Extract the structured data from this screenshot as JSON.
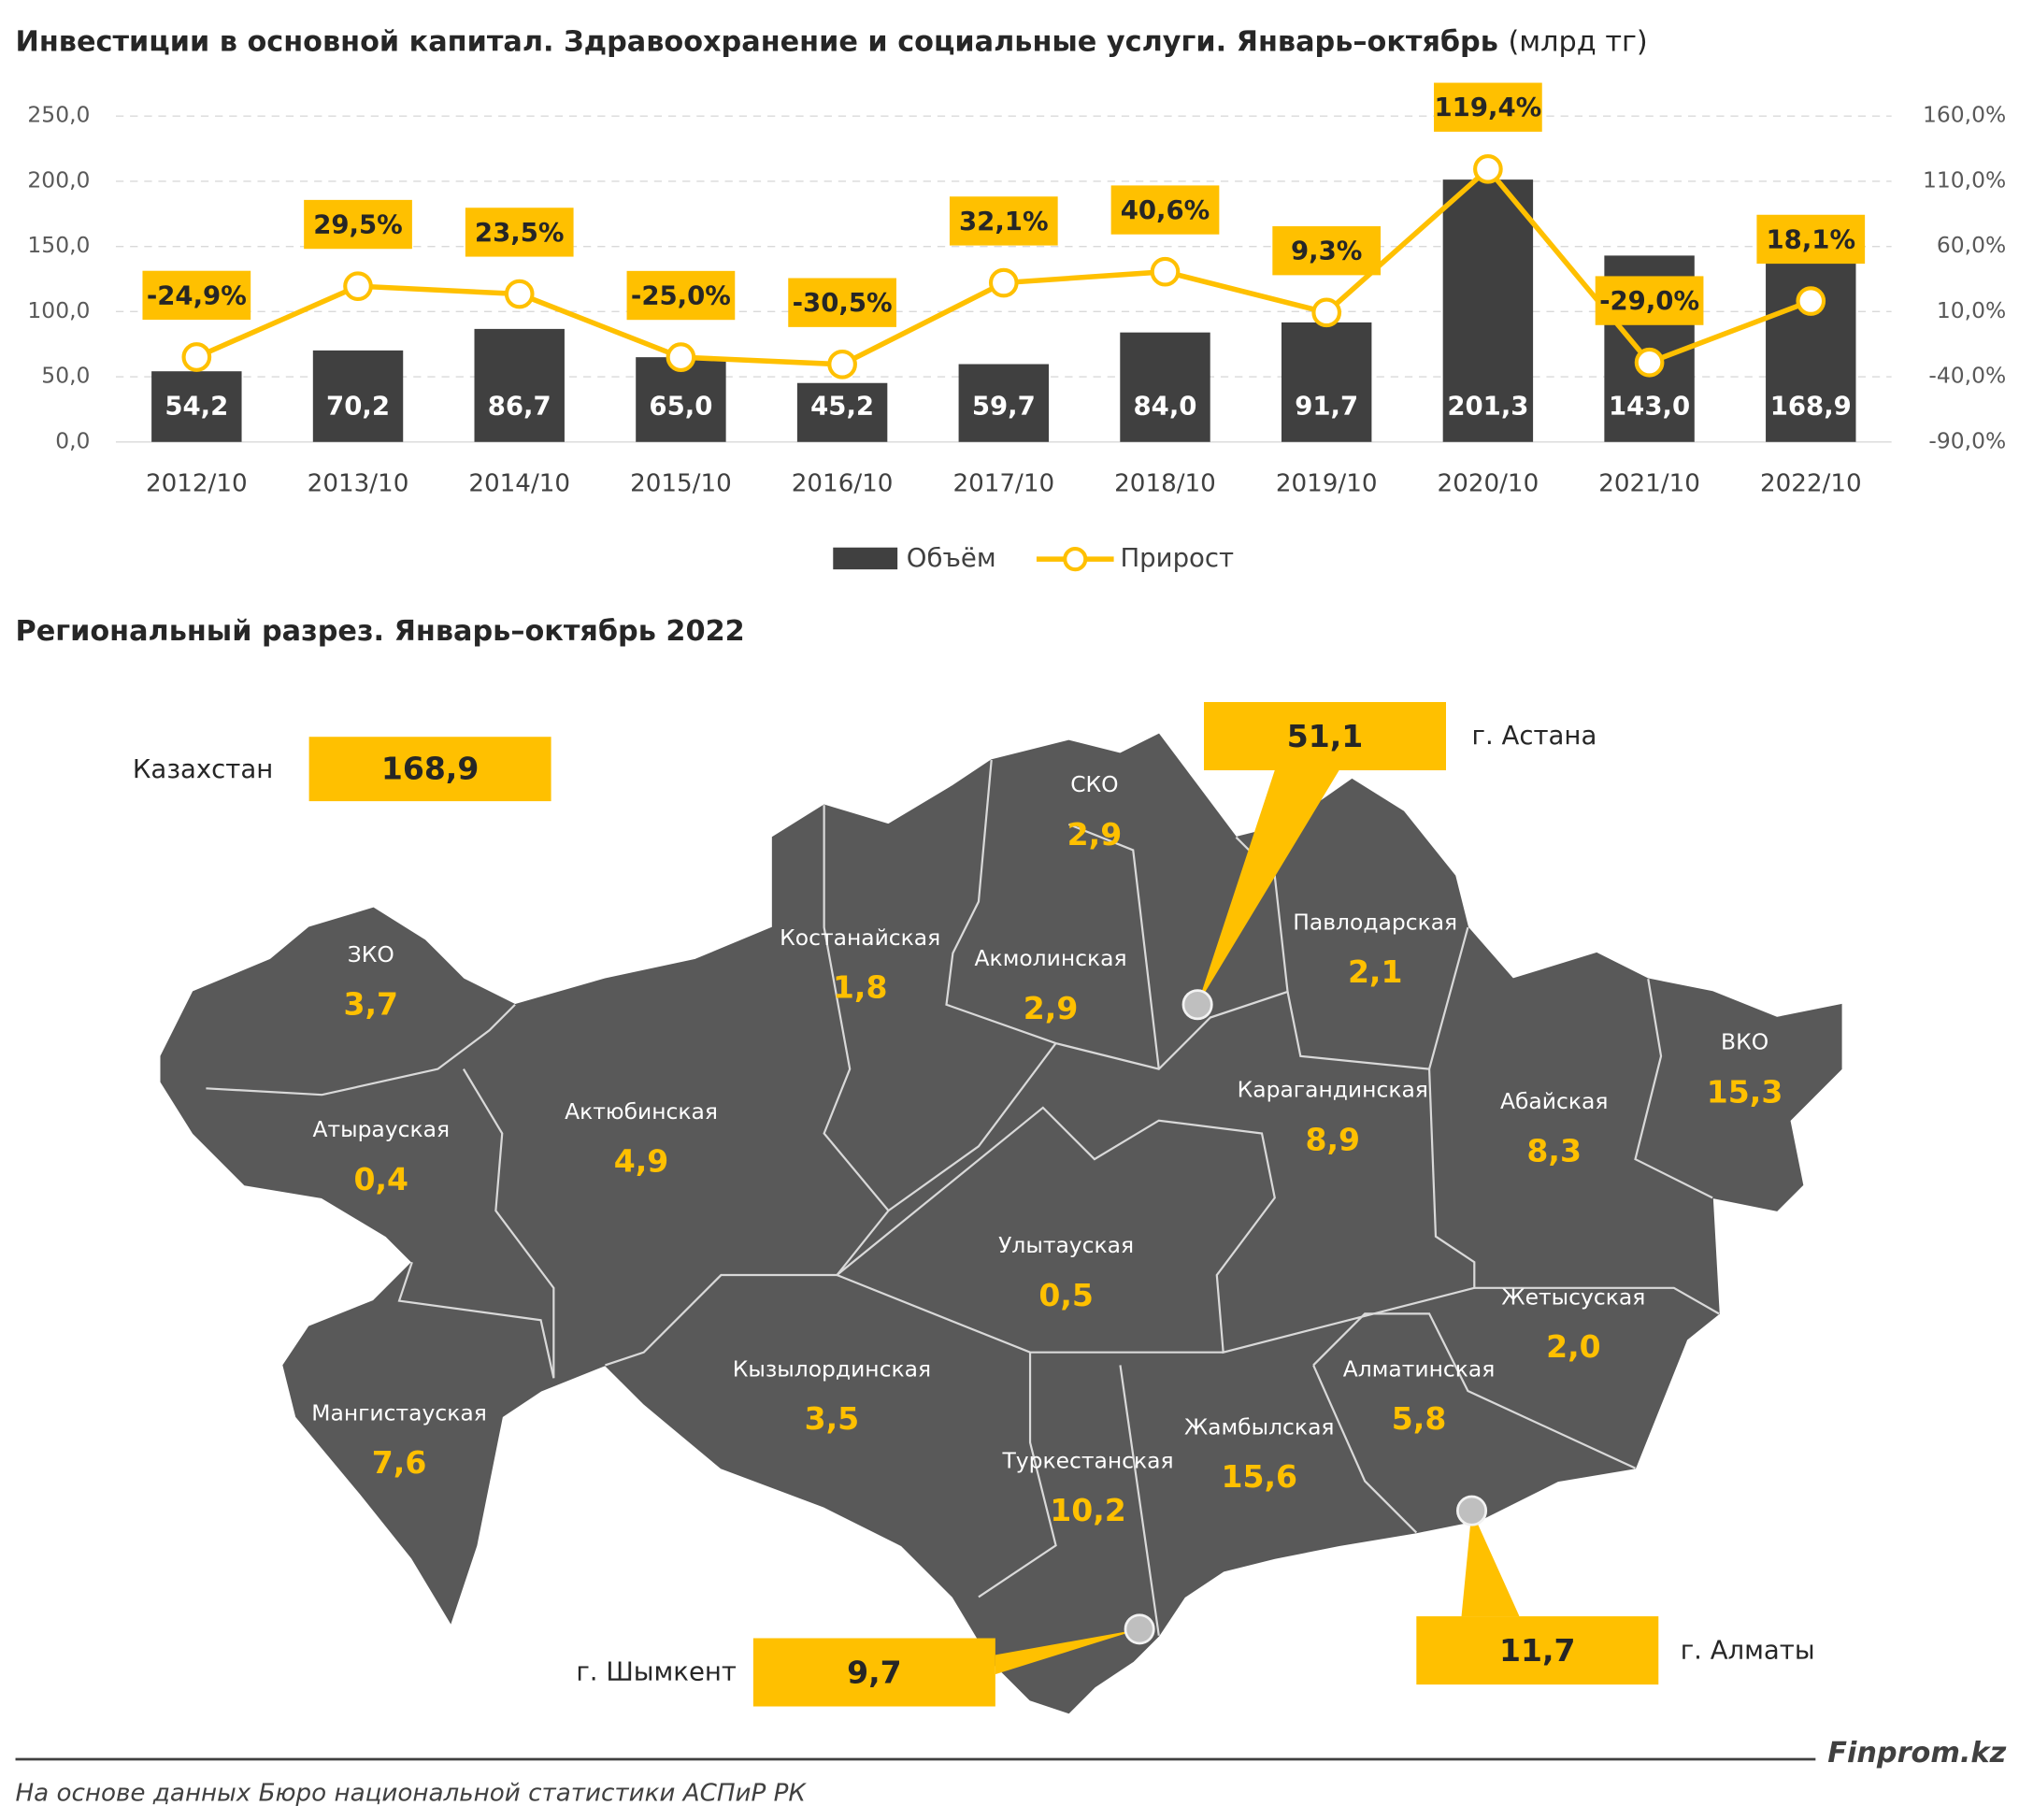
{
  "chart_data": {
    "type": "bar-line",
    "title": "Инвестиции в основной капитал. Здравоохранение и социальные услуги. Январь–октябрь",
    "unit": "(млрд тг)",
    "categories": [
      "2012/10",
      "2013/10",
      "2014/10",
      "2015/10",
      "2016/10",
      "2017/10",
      "2018/10",
      "2019/10",
      "2020/10",
      "2021/10",
      "2022/10"
    ],
    "series": [
      {
        "name": "Объём",
        "type": "bar",
        "color": "#404040",
        "values": [
          54.2,
          70.2,
          86.7,
          65.0,
          45.2,
          59.7,
          84.0,
          91.7,
          201.3,
          143.0,
          168.9
        ],
        "value_labels": [
          "54,2",
          "70,2",
          "86,7",
          "65,0",
          "45,2",
          "59,7",
          "84,0",
          "91,7",
          "201,3",
          "143,0",
          "168,9"
        ]
      },
      {
        "name": "Прирост",
        "type": "line",
        "axis": "y2",
        "color": "#FFC000",
        "values": [
          -24.9,
          29.5,
          23.5,
          -25.0,
          -30.5,
          32.1,
          40.6,
          9.3,
          119.4,
          -29.0,
          18.1
        ],
        "value_labels": [
          "-24,9%",
          "29,5%",
          "23,5%",
          "-25,0%",
          "-30,5%",
          "32,1%",
          "40,6%",
          "9,3%",
          "119,4%",
          "-29,0%",
          "18,1%"
        ]
      }
    ],
    "ylim": [
      0,
      250
    ],
    "yticks": [
      {
        "value": 0,
        "label": "0,0"
      },
      {
        "value": 50,
        "label": "50,0"
      },
      {
        "value": 100,
        "label": "100,0"
      },
      {
        "value": 150,
        "label": "150,0"
      },
      {
        "value": 200,
        "label": "200,0"
      },
      {
        "value": 250,
        "label": "250,0"
      }
    ],
    "y2lim": [
      -90,
      160
    ],
    "y2ticks": [
      {
        "value": -90,
        "label": "-90,0%"
      },
      {
        "value": -40,
        "label": "-40,0%"
      },
      {
        "value": 10,
        "label": "10,0%"
      },
      {
        "value": 60,
        "label": "60,0%"
      },
      {
        "value": 110,
        "label": "110,0%"
      },
      {
        "value": 160,
        "label": "160,0%"
      }
    ],
    "grid": true,
    "legend": "bottom"
  },
  "map": {
    "title": "Региональный разрез. Январь–октябрь 2022",
    "total": {
      "name": "Казахстан",
      "value": "168,9"
    },
    "regions": [
      {
        "name": "ЗКО",
        "value": "3,7"
      },
      {
        "name": "Атырауская",
        "value": "0,4"
      },
      {
        "name": "Актюбинская",
        "value": "4,9"
      },
      {
        "name": "Костанайская",
        "value": "1,8"
      },
      {
        "name": "СКО",
        "value": "2,9"
      },
      {
        "name": "Акмолинская",
        "value": "2,9"
      },
      {
        "name": "Павлодарская",
        "value": "2,1"
      },
      {
        "name": "Карагандинская",
        "value": "8,9"
      },
      {
        "name": "Абайская",
        "value": "8,3"
      },
      {
        "name": "ВКО",
        "value": "15,3"
      },
      {
        "name": "Улытауская",
        "value": "0,5"
      },
      {
        "name": "Жетысуская",
        "value": "2,0"
      },
      {
        "name": "Алматинская",
        "value": "5,8"
      },
      {
        "name": "Кызылординская",
        "value": "3,5"
      },
      {
        "name": "Мангистауская",
        "value": "7,6"
      },
      {
        "name": "Туркестанская",
        "value": "10,2"
      },
      {
        "name": "Жамбылская",
        "value": "15,6"
      }
    ],
    "cities": [
      {
        "name": "г. Астана",
        "value": "51,1"
      },
      {
        "name": "г. Алматы",
        "value": "11,7"
      },
      {
        "name": "г. Шымкент",
        "value": "9,7"
      }
    ]
  },
  "footer": {
    "source": "На основе данных Бюро национальной статистики АСПиР РК",
    "brand": "Finprom.kz"
  }
}
